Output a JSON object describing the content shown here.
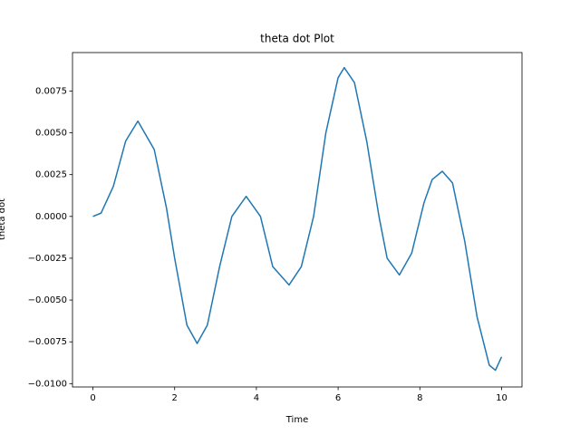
{
  "chart_data": {
    "type": "line",
    "title": "theta dot Plot",
    "xlabel": "Time",
    "ylabel": "theta dot",
    "x": [
      0,
      0.2,
      0.5,
      0.8,
      1.1,
      1.5,
      1.8,
      2.0,
      2.3,
      2.55,
      2.8,
      3.1,
      3.4,
      3.75,
      4.1,
      4.4,
      4.8,
      5.1,
      5.4,
      5.7,
      6.0,
      6.15,
      6.4,
      6.7,
      7.0,
      7.2,
      7.5,
      7.8,
      8.1,
      8.3,
      8.55,
      8.8,
      9.1,
      9.4,
      9.7,
      9.85,
      10
    ],
    "series": [
      {
        "name": "theta dot",
        "color": "#1f77b4",
        "values": [
          0,
          0.0002,
          0.0018,
          0.0045,
          0.0057,
          0.004,
          0.0005,
          -0.0025,
          -0.0065,
          -0.0076,
          -0.0065,
          -0.003,
          0.0,
          0.0012,
          0.0,
          -0.003,
          -0.0041,
          -0.003,
          0.0,
          0.005,
          0.0083,
          0.0089,
          0.008,
          0.0045,
          0.0,
          -0.0025,
          -0.0035,
          -0.0022,
          0.0008,
          0.0022,
          0.0027,
          0.002,
          -0.0015,
          -0.006,
          -0.0089,
          -0.0092,
          -0.0084
        ]
      }
    ],
    "xlim": [
      -0.5,
      10.5
    ],
    "xticks": [
      0,
      2,
      4,
      6,
      8,
      10
    ],
    "ylim": [
      -0.0102,
      0.0098
    ],
    "yticks": [
      {
        "value": -0.01,
        "label": "−0.0100"
      },
      {
        "value": -0.0075,
        "label": "−0.0075"
      },
      {
        "value": -0.005,
        "label": "−0.0050"
      },
      {
        "value": -0.0025,
        "label": "−0.0025"
      },
      {
        "value": 0,
        "label": "0.0000"
      },
      {
        "value": 0.0025,
        "label": "0.0025"
      },
      {
        "value": 0.005,
        "label": "0.0050"
      },
      {
        "value": 0.0075,
        "label": "0.0075"
      }
    ]
  }
}
